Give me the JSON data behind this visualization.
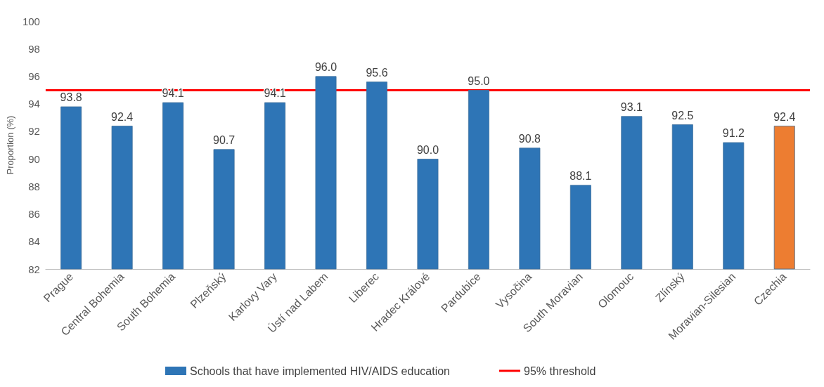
{
  "chart_data": {
    "type": "bar",
    "ylabel": "Proportion (%)",
    "categories": [
      "Prague",
      "Central Bohemia",
      "South Bohemia",
      "Plzeňský",
      "Karlovy Vary",
      "Ústí nad Labem",
      "Liberec",
      "Hradec Králové",
      "Pardubice",
      "Vysočina",
      "South Moravian",
      "Olomouc",
      "Zlínský",
      "Moravian-Silesian",
      "Czechia"
    ],
    "series": [
      {
        "name": "Schools that have implemented HIV/AIDS education",
        "color": "#2e75b6",
        "colors": [
          "#2e75b6",
          "#2e75b6",
          "#2e75b6",
          "#2e75b6",
          "#2e75b6",
          "#2e75b6",
          "#2e75b6",
          "#2e75b6",
          "#2e75b6",
          "#2e75b6",
          "#2e75b6",
          "#2e75b6",
          "#2e75b6",
          "#2e75b6",
          "#ed7d31"
        ],
        "values": [
          93.8,
          92.4,
          94.1,
          90.7,
          94.1,
          96.0,
          95.6,
          90.0,
          95.0,
          90.8,
          88.1,
          93.1,
          92.5,
          91.2,
          92.4
        ],
        "value_labels": [
          "93.8",
          "92.4",
          "94.1",
          "90.7",
          "94.1",
          "96.0",
          "95.6",
          "90.0",
          "95.0",
          "90.8",
          "88.1",
          "93.1",
          "92.5",
          "91.2",
          "92.4"
        ]
      }
    ],
    "ref_lines": [
      {
        "axis": "y",
        "value": 95,
        "label": "95% threshold",
        "color": "#ff0000",
        "line_style": "solid"
      }
    ],
    "ylim": [
      82,
      100
    ],
    "yticks": [
      82,
      84,
      86,
      88,
      90,
      92,
      94,
      96,
      98,
      100
    ],
    "grid": false,
    "legend": "bottom"
  }
}
